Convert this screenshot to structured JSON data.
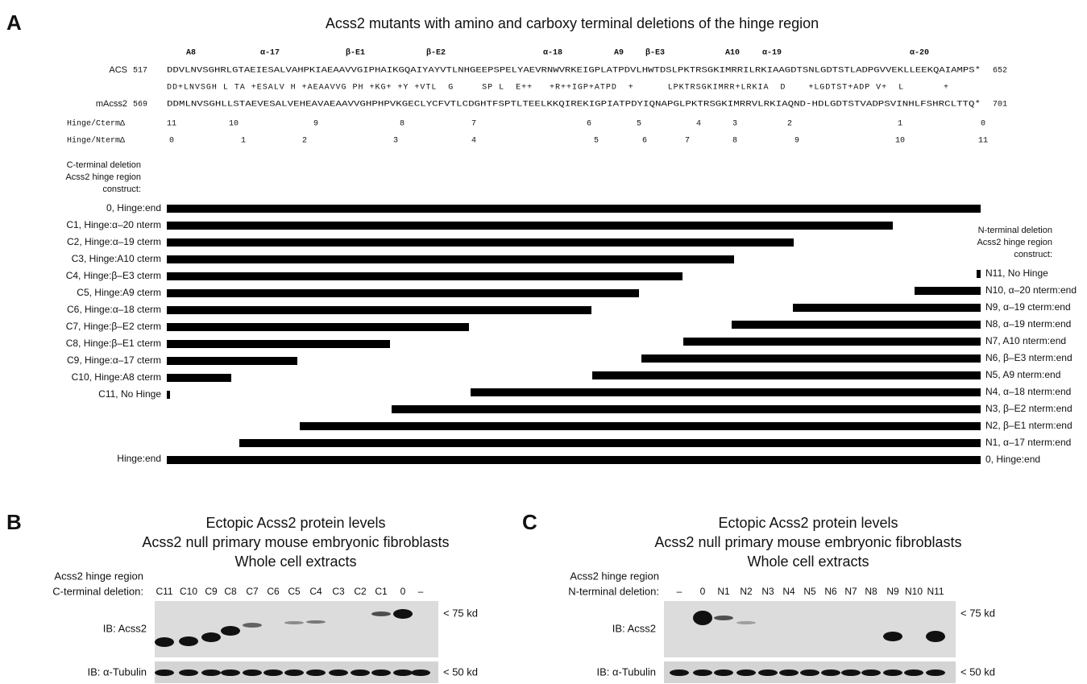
{
  "panel_a": {
    "letter": "A",
    "title": "Acss2 mutants with amino and carboxy terminal deletions of the hinge region",
    "elements": [
      "A8",
      "α-17",
      "β-E1",
      "β-E2",
      "α-18",
      "A9",
      "β-E3",
      "A10",
      "α-19",
      "α-20"
    ],
    "acs": {
      "name": "ACS",
      "start": "517",
      "seq": "DDVLNVSGHRLGTAEIESALVAHPKIAEAAVVGIPHAIKGQAIYAYVTLNHGEEPSPELYAEVRNWVRKEIGPLATPDVLHWTDSLPKTRSGKIMRRILRKIAAGDTSNLGDTSTLADPGVVEKLLEEKQAIAMPS*",
      "end": "652"
    },
    "match": "DD+LNVSGH L TA +ESALV H +AEAAVVG PH +KG+ +Y +VTL  G     SP L  E++   +R++IGP+ATPD  +      LPKTRSGKIMRR+LRKIA  D    +LGDTST+ADP V+  L       +",
    "macss2": {
      "name": "mAcss2",
      "start": "569",
      "seq": "DDMLNVSGHLLSTAEVESALVEHEAVAEAAVVGHPHPVKGECLYCFVTLCDGHTFSPTLTEELKKQIREKIGPIATPDYIQNAPGLPKTRSGKIMRRVLRKIAQND-HDLGDTSTVADPSVINHLFSHRCLTTQ*",
      "end": "701"
    },
    "cterm_ruler": {
      "name": "Hinge/CtermΔ",
      "labels": [
        "11",
        "10",
        "9",
        "8",
        "7",
        "6",
        "5",
        "4",
        "3",
        "2",
        "1",
        "0"
      ]
    },
    "nterm_ruler": {
      "name": "Hinge/NtermΔ",
      "labels": [
        "0",
        "1",
        "2",
        "3",
        "4",
        "5",
        "6",
        "7",
        "8",
        "9",
        "10",
        "11"
      ]
    },
    "cterm_heading": [
      "C-terminal deletion",
      "Acss2 hinge region",
      "construct:"
    ],
    "nterm_heading": [
      "N-terminal deletion",
      "Acss2 hinge region",
      "construct:"
    ],
    "cterm_constructs": [
      "0, Hinge:end",
      "C1, Hinge:α–20 nterm",
      "C2, Hinge:α–19 cterm",
      "C3, Hinge:A10 cterm",
      "C4, Hinge:β–E3 cterm",
      "C5, Hinge:A9 cterm",
      "C6, Hinge:α–18 cterm",
      "C7, Hinge:β–E2 cterm",
      "C8, Hinge:β–E1 cterm",
      "C9, Hinge:α–17 cterm",
      "C10, Hinge:A8 cterm",
      "C11, No Hinge"
    ],
    "nterm_constructs": [
      "N11, No Hinge",
      "N10, α–20 nterm:end",
      "N9, α–19 cterm:end",
      "N8, α–19 nterm:end",
      "N7, A10 nterm:end",
      "N6, β–E3 nterm:end",
      "N5, A9 nterm:end",
      "N4, α–18 nterm:end",
      "N3, β–E2 nterm:end",
      "N2, β–E1 nterm:end",
      "N1, α–17 nterm:end",
      "0, Hinge:end"
    ],
    "full_left": "Hinge:end"
  },
  "panel_b": {
    "letter": "B",
    "title": [
      "Ectopic Acss2 protein levels",
      "Acss2 null primary mouse embryonic fibroblasts",
      "Whole cell extracts"
    ],
    "lane_heading": [
      "Acss2 hinge region",
      "C-terminal deletion:"
    ],
    "lanes": [
      "C11",
      "C10",
      "C9",
      "C8",
      "C7",
      "C6",
      "C5",
      "C4",
      "C3",
      "C2",
      "C1",
      "0",
      "–"
    ],
    "blots": [
      "IB: Acss2",
      "IB: α-Tubulin"
    ],
    "markers": [
      "< 75 kd",
      "< 50 kd"
    ]
  },
  "panel_c": {
    "letter": "C",
    "title": [
      "Ectopic Acss2 protein levels",
      "Acss2 null primary mouse embryonic fibroblasts",
      "Whole cell extracts"
    ],
    "lane_heading": [
      "Acss2 hinge region",
      "N-terminal deletion:"
    ],
    "lanes": [
      "–",
      "0",
      "N1",
      "N2",
      "N3",
      "N4",
      "N5",
      "N6",
      "N7",
      "N8",
      "N9",
      "N10",
      "N11"
    ],
    "blots": [
      "IB: Acss2",
      "IB: α-Tubulin"
    ],
    "markers": [
      "< 75 kd",
      "< 50 kd"
    ]
  }
}
